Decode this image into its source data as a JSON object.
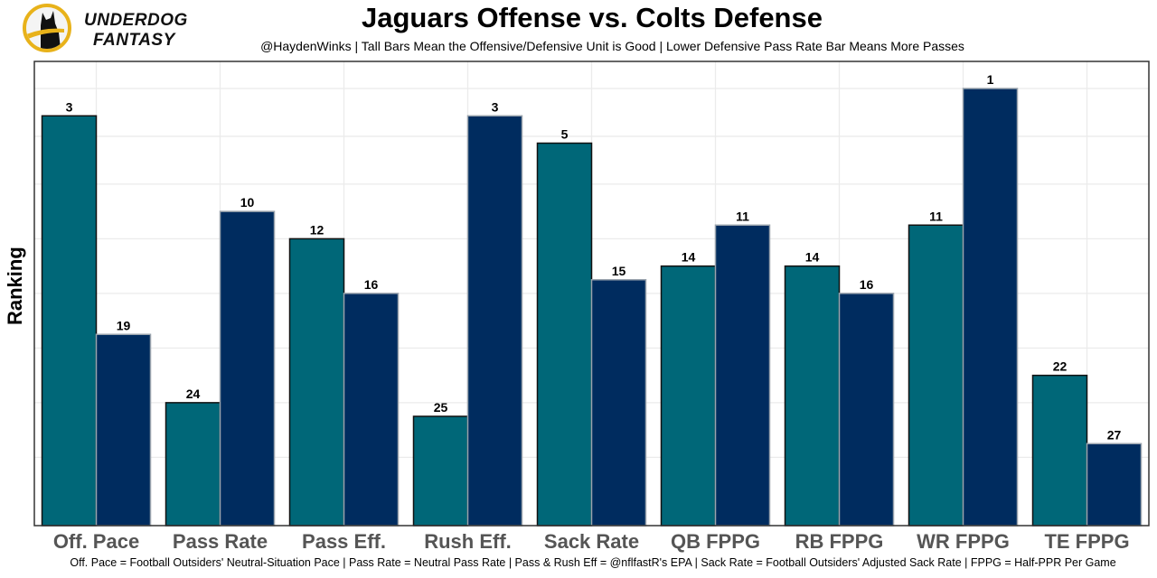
{
  "logo": {
    "line1": "UNDERDOG",
    "line2": "FANTASY",
    "colors": {
      "ring": "#e8b21a",
      "dog": "#111111"
    }
  },
  "chart_data": {
    "type": "bar",
    "title": "Jaguars Offense vs. Colts Defense",
    "subtitle": "@HaydenWinks | Tall Bars Mean the Offensive/Defensive Unit is Good | Lower Defensive Pass Rate Bar Means More Passes",
    "xlabel": "",
    "ylabel": "Ranking",
    "caption": "Off. Pace = Football Outsiders' Neutral-Situation Pace | Pass Rate = Neutral Pass Rate | Pass & Rush Eff = @nflfastR's EPA | Sack Rate = Football Outsiders' Adjusted Sack Rate | FPPG = Half-PPR Per Game",
    "categories": [
      "Off. Pace",
      "Pass Rate",
      "Pass Eff.",
      "Rush Eff.",
      "Sack Rate",
      "QB FPPG",
      "RB FPPG",
      "WR FPPG",
      "TE FPPG"
    ],
    "series": [
      {
        "name": "Jaguars Offense",
        "color": "#006778",
        "values": [
          3,
          24,
          12,
          25,
          5,
          14,
          14,
          11,
          22
        ]
      },
      {
        "name": "Colts Defense",
        "color": "#002c5f",
        "values": [
          19,
          10,
          16,
          3,
          15,
          11,
          16,
          1,
          27
        ]
      }
    ],
    "value_note": "Bar height = 33 - rank (rank 1 tallest)",
    "rank_max": 32,
    "grid": true,
    "legend": "none"
  }
}
